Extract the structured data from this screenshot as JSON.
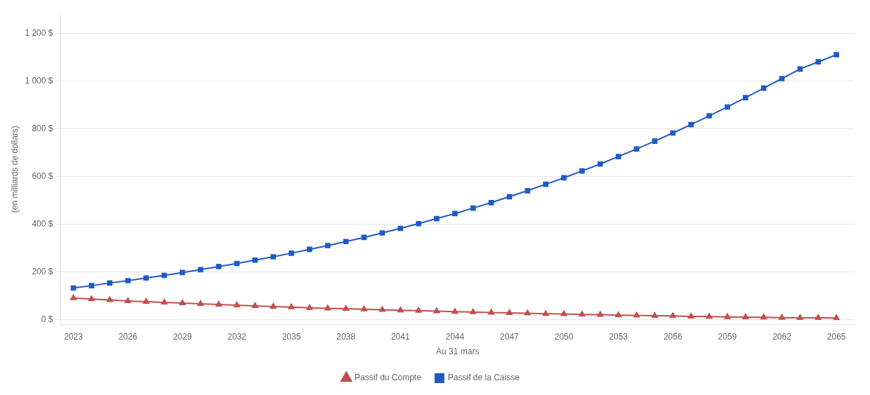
{
  "chart_data": {
    "type": "line",
    "xlabel": "Au 31 mars",
    "ylabel": "(en milliards de dollars)",
    "x": [
      2023,
      2024,
      2025,
      2026,
      2027,
      2028,
      2029,
      2030,
      2031,
      2032,
      2033,
      2034,
      2035,
      2036,
      2037,
      2038,
      2039,
      2040,
      2041,
      2042,
      2043,
      2044,
      2045,
      2046,
      2047,
      2048,
      2049,
      2050,
      2051,
      2052,
      2053,
      2054,
      2055,
      2056,
      2057,
      2058,
      2059,
      2060,
      2061,
      2062,
      2063,
      2064,
      2065
    ],
    "series": [
      {
        "name": "Passif de la Caisse",
        "color": "#1f5bc4",
        "marker": "square",
        "values": [
          132,
          142,
          153,
          163,
          174,
          185,
          197,
          209,
          222,
          235,
          249,
          263,
          278,
          294,
          310,
          327,
          344,
          363,
          382,
          402,
          423,
          444,
          467,
          490,
          515,
          540,
          567,
          594,
          623,
          652,
          683,
          715,
          748,
          782,
          817,
          854,
          891,
          930,
          970,
          1010,
          1050,
          1080,
          1110
        ]
      },
      {
        "name": "Passif du Compte",
        "color": "#c0504d",
        "marker": "triangle",
        "values": [
          90,
          86,
          82,
          78,
          75,
          72,
          69,
          66,
          63,
          60,
          57,
          54,
          52,
          49,
          47,
          45,
          43,
          41,
          39,
          37,
          35,
          33,
          31,
          29,
          28,
          26,
          24,
          23,
          21,
          20,
          18,
          17,
          16,
          15,
          13,
          12,
          11,
          10,
          9,
          8,
          7,
          7,
          6
        ]
      }
    ],
    "xlim": [
      2022.3,
      2066.0
    ],
    "xticks": [
      2023,
      2026,
      2029,
      2032,
      2035,
      2038,
      2041,
      2044,
      2047,
      2050,
      2053,
      2056,
      2059,
      2062,
      2065
    ],
    "ylim": [
      -20,
      1280
    ],
    "yticks": [
      {
        "value": 0,
        "label": "0 $"
      },
      {
        "value": 200,
        "label": "200 $"
      },
      {
        "value": 400,
        "label": "400 $"
      },
      {
        "value": 600,
        "label": "600 $"
      },
      {
        "value": 800,
        "label": "800 $"
      },
      {
        "value": 1000,
        "label": "1 000 $"
      },
      {
        "value": 1200,
        "label": "1 200 $"
      }
    ],
    "grid": "y",
    "legend": "bottom"
  }
}
